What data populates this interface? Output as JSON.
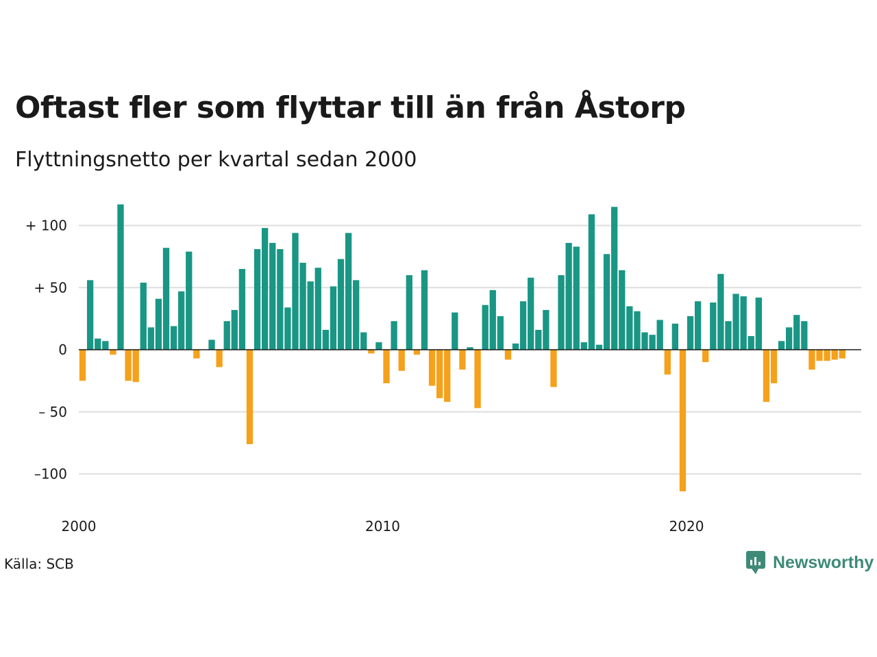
{
  "chart_data": {
    "type": "bar",
    "title": "Oftast fler som flyttar till än från Åstorp",
    "subtitle": "Flyttningsnetto per kvartal sedan 2000",
    "x_start": 2000,
    "x_step": 0.25,
    "xlim": [
      2000,
      2025.75
    ],
    "x_ticks": [
      2000,
      2010,
      2020
    ],
    "x_tick_labels": [
      "2000",
      "2010",
      "2020"
    ],
    "ylim": [
      -125,
      120
    ],
    "y_ticks": [
      100,
      50,
      0,
      -50,
      -100
    ],
    "y_tick_labels": [
      "+ 100",
      "+  50",
      "0",
      "– 50",
      "–100"
    ],
    "positive_color": "#1a9685",
    "negative_color": "#f5a11c",
    "grid": true,
    "values": [
      -25,
      56,
      9,
      7,
      -4,
      117,
      -25,
      -26,
      54,
      18,
      41,
      82,
      19,
      47,
      79,
      -7,
      0,
      8,
      -14,
      23,
      32,
      65,
      -76,
      81,
      98,
      86,
      81,
      34,
      94,
      70,
      55,
      66,
      16,
      51,
      73,
      94,
      56,
      14,
      -3,
      6,
      -27,
      23,
      -17,
      60,
      -4,
      64,
      -29,
      -39,
      -42,
      30,
      -16,
      2,
      -47,
      36,
      48,
      27,
      -8,
      5,
      39,
      58,
      16,
      32,
      -30,
      60,
      86,
      83,
      6,
      109,
      4,
      77,
      115,
      64,
      35,
      31,
      14,
      12,
      24,
      -20,
      21,
      -114,
      27,
      39,
      -10,
      38,
      61,
      23,
      45,
      43,
      11,
      42,
      -42,
      -27,
      7,
      18,
      28,
      23,
      -16,
      -9,
      -9,
      -8,
      -7
    ]
  },
  "footer": {
    "source": "Källa: SCB",
    "brand": "Newsworthy"
  },
  "colors": {
    "brand": "#3e8a78"
  }
}
